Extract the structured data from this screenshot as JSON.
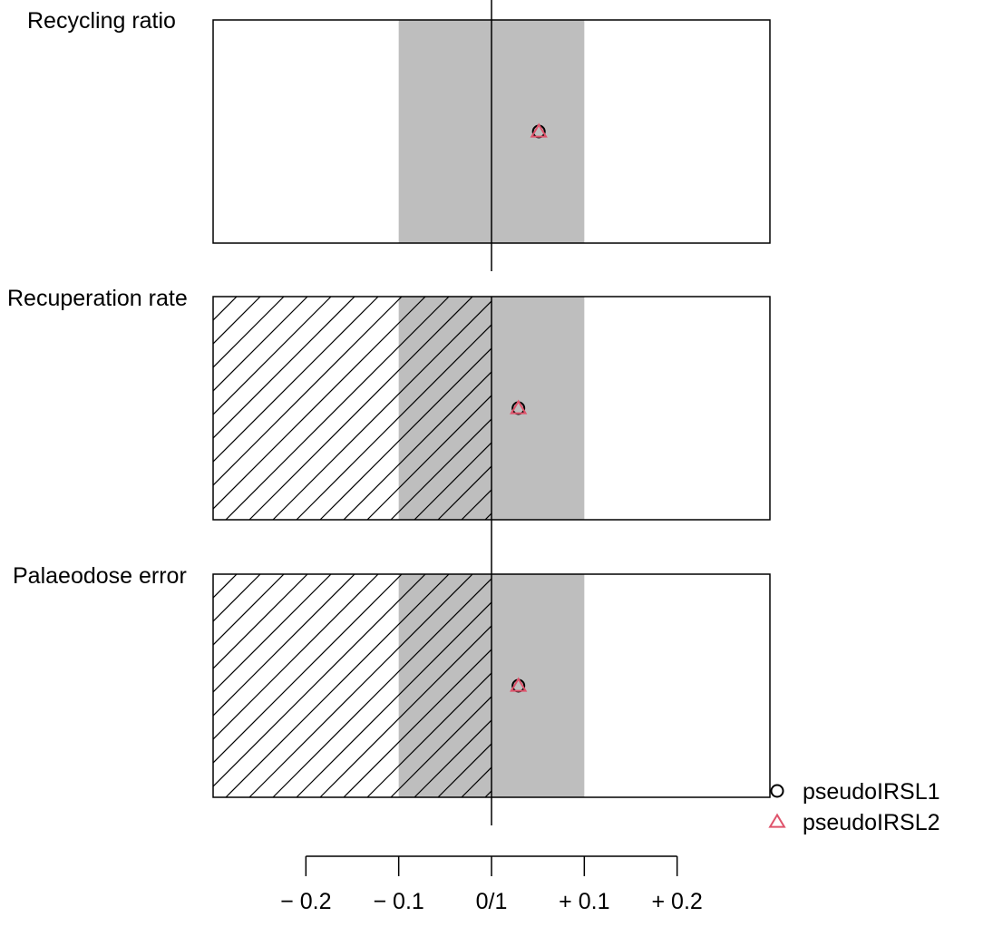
{
  "chart_data": {
    "type": "scatter",
    "x_range": [
      -0.3,
      0.3
    ],
    "center_value": 0,
    "tolerance": 0.1,
    "tick_values": [
      -0.2,
      -0.1,
      0,
      0.1,
      0.2
    ],
    "tick_labels": [
      "− 0.2",
      "− 0.1",
      "0/1",
      "+ 0.1",
      "+ 0.2"
    ],
    "panels": [
      {
        "title": "Recycling ratio",
        "hatched_left": false,
        "values": {
          "pseudoIRSL1": 0.051,
          "pseudoIRSL2": 0.051
        }
      },
      {
        "title": "Recuperation rate",
        "hatched_left": true,
        "values": {
          "pseudoIRSL1": 0.029,
          "pseudoIRSL2": 0.029
        }
      },
      {
        "title": "Palaeodose error",
        "hatched_left": true,
        "values": {
          "pseudoIRSL1": 0.029,
          "pseudoIRSL2": 0.029
        }
      }
    ],
    "series": [
      {
        "name": "pseudoIRSL1",
        "marker": "circle",
        "color": "#000000"
      },
      {
        "name": "pseudoIRSL2",
        "marker": "triangle",
        "color": "#df536b"
      }
    ],
    "legend_position": "bottom-right",
    "colors": {
      "tolerance_band": "#bebebe",
      "frame": "#000000"
    }
  }
}
